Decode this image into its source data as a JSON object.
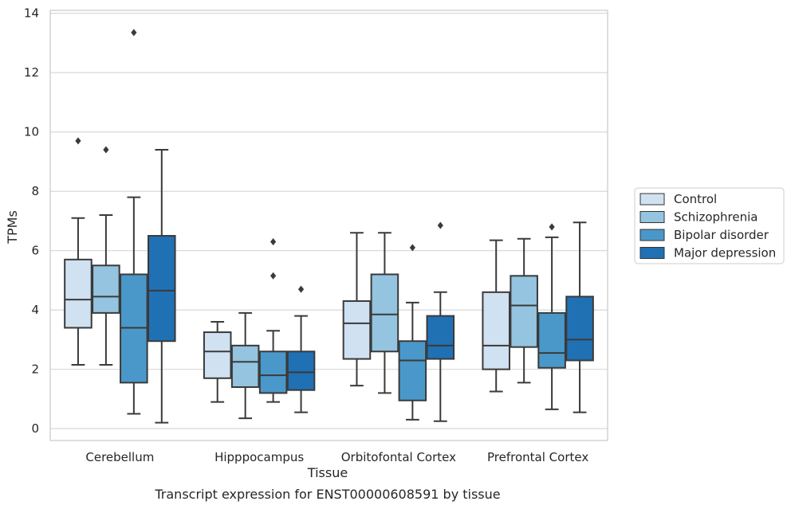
{
  "chart_data": {
    "type": "box",
    "title": "",
    "caption": "Transcript expression for ENST00000608591 by tissue",
    "xlabel": "Tissue",
    "ylabel": "TPMs",
    "ylim": [
      -0.4,
      14.1
    ],
    "yticks": [
      0,
      2,
      4,
      6,
      8,
      10,
      12,
      14
    ],
    "grid": "horizontal",
    "legend_position": "outside-right",
    "categories": [
      "Cerebellum",
      "Hipppocampus",
      "Orbitofontal Cortex",
      "Prefrontal Cortex"
    ],
    "series": [
      {
        "name": "Control",
        "color": "#d0e1f2",
        "boxes": [
          {
            "q1": 3.4,
            "median": 4.35,
            "q3": 5.7,
            "whisker_low": 2.15,
            "whisker_high": 7.1,
            "outliers": [
              9.7
            ]
          },
          {
            "q1": 1.7,
            "median": 2.6,
            "q3": 3.25,
            "whisker_low": 0.9,
            "whisker_high": 3.6,
            "outliers": []
          },
          {
            "q1": 2.35,
            "median": 3.55,
            "q3": 4.3,
            "whisker_low": 1.45,
            "whisker_high": 6.6,
            "outliers": []
          },
          {
            "q1": 2.0,
            "median": 2.8,
            "q3": 4.6,
            "whisker_low": 1.25,
            "whisker_high": 6.35,
            "outliers": []
          }
        ]
      },
      {
        "name": "Schizophrenia",
        "color": "#94c4df",
        "boxes": [
          {
            "q1": 3.9,
            "median": 4.45,
            "q3": 5.5,
            "whisker_low": 2.15,
            "whisker_high": 7.2,
            "outliers": [
              9.4
            ]
          },
          {
            "q1": 1.4,
            "median": 2.25,
            "q3": 2.8,
            "whisker_low": 0.35,
            "whisker_high": 3.9,
            "outliers": []
          },
          {
            "q1": 2.6,
            "median": 3.85,
            "q3": 5.2,
            "whisker_low": 1.2,
            "whisker_high": 6.6,
            "outliers": []
          },
          {
            "q1": 2.75,
            "median": 4.15,
            "q3": 5.15,
            "whisker_low": 1.55,
            "whisker_high": 6.4,
            "outliers": []
          }
        ]
      },
      {
        "name": "Bipolar disorder",
        "color": "#4a98c9",
        "boxes": [
          {
            "q1": 1.55,
            "median": 3.4,
            "q3": 5.2,
            "whisker_low": 0.5,
            "whisker_high": 7.8,
            "outliers": [
              13.35
            ]
          },
          {
            "q1": 1.2,
            "median": 1.8,
            "q3": 2.6,
            "whisker_low": 0.9,
            "whisker_high": 3.3,
            "outliers": [
              5.15,
              6.3
            ]
          },
          {
            "q1": 0.95,
            "median": 2.3,
            "q3": 2.95,
            "whisker_low": 0.3,
            "whisker_high": 4.25,
            "outliers": [
              6.1
            ]
          },
          {
            "q1": 2.05,
            "median": 2.55,
            "q3": 3.9,
            "whisker_low": 0.65,
            "whisker_high": 6.45,
            "outliers": [
              6.8
            ]
          }
        ]
      },
      {
        "name": "Major depression",
        "color": "#2070b4",
        "boxes": [
          {
            "q1": 2.95,
            "median": 4.65,
            "q3": 6.5,
            "whisker_low": 0.2,
            "whisker_high": 9.4,
            "outliers": []
          },
          {
            "q1": 1.3,
            "median": 1.9,
            "q3": 2.6,
            "whisker_low": 0.55,
            "whisker_high": 3.8,
            "outliers": [
              4.7
            ]
          },
          {
            "q1": 2.35,
            "median": 2.8,
            "q3": 3.8,
            "whisker_low": 0.25,
            "whisker_high": 4.6,
            "outliers": [
              6.85
            ]
          },
          {
            "q1": 2.3,
            "median": 3.0,
            "q3": 4.45,
            "whisker_low": 0.55,
            "whisker_high": 6.95,
            "outliers": []
          }
        ]
      }
    ]
  }
}
